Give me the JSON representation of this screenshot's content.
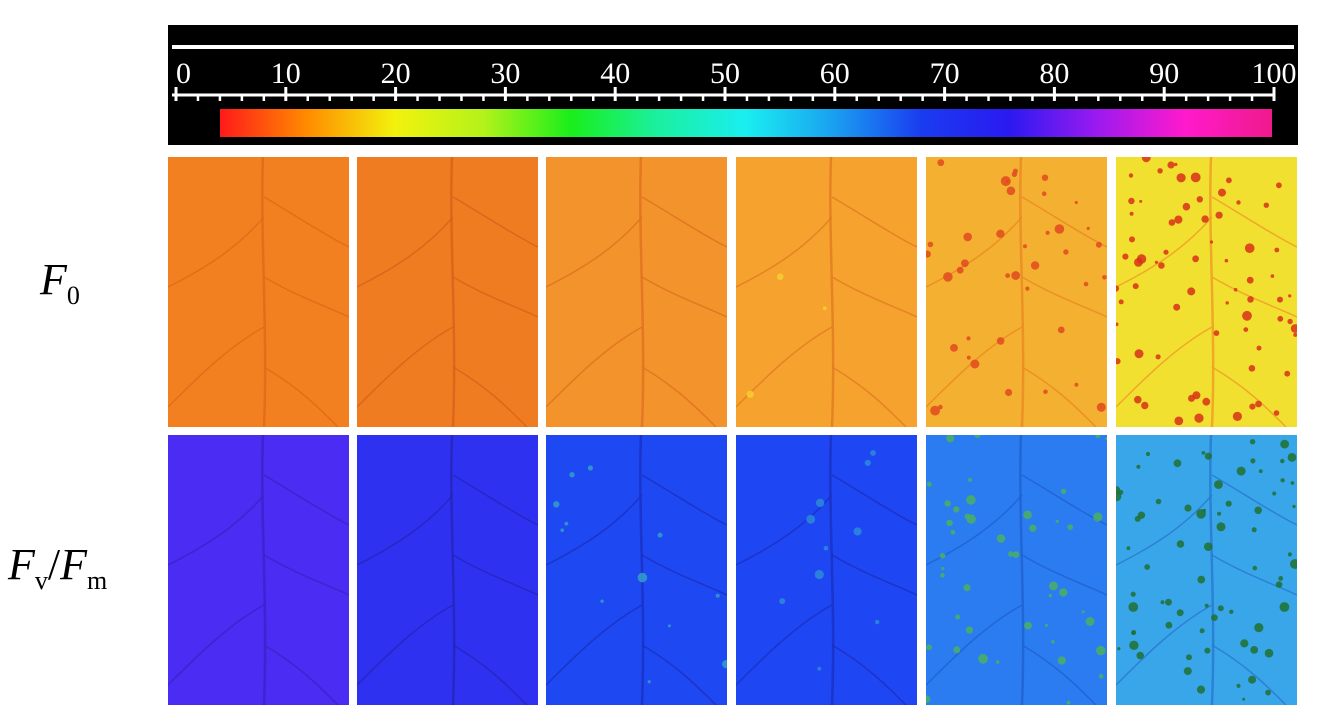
{
  "colorbar": {
    "ticks": [
      "0",
      "10",
      "20",
      "30",
      "40",
      "50",
      "60",
      "70",
      "80",
      "90",
      "100"
    ],
    "gradient_colors": [
      "#ff1a1a",
      "#ff8c00",
      "#f2f20d",
      "#b4f21a",
      "#1aee1a",
      "#1af0a0",
      "#1aeef0",
      "#1aa0f0",
      "#1a3cf0",
      "#2a1af0",
      "#9a1af0",
      "#ff1acc",
      "#f01a8c"
    ]
  },
  "row_labels": {
    "f0": {
      "main": "F",
      "sub": "0"
    },
    "fvfm": {
      "main1": "F",
      "sub1": "v",
      "slash": "/",
      "main2": "F",
      "sub2": "m"
    }
  },
  "panels": {
    "f0": [
      {
        "base": "#f28020",
        "vein": "#e06818",
        "spot": "#f5a030",
        "spots": 0
      },
      {
        "base": "#f07c22",
        "vein": "#d8601a",
        "spot": "#f59a30",
        "spots": 0
      },
      {
        "base": "#f3932c",
        "vein": "#e07020",
        "spot": "#f6b040",
        "spots": 0
      },
      {
        "base": "#f5a22e",
        "vein": "#e37a22",
        "spot": "#f4d030",
        "spots": 3
      },
      {
        "base": "#f4b030",
        "vein": "#e88a24",
        "spot": "#e04a20",
        "spots": 40
      },
      {
        "base": "#f2e030",
        "vein": "#ef9a28",
        "spot": "#d83018",
        "spots": 70
      }
    ],
    "fvfm": [
      {
        "base": "#4a2cf2",
        "vein": "#3a22c8",
        "spot": "#5a3af4",
        "spots": 0
      },
      {
        "base": "#2e32f0",
        "vein": "#2424b8",
        "spot": "#3a40f4",
        "spots": 0
      },
      {
        "base": "#1e48f2",
        "vein": "#1a30c0",
        "spot": "#30a0c8",
        "spots": 12
      },
      {
        "base": "#1e46f2",
        "vein": "#1a30c0",
        "spot": "#2c8cd8",
        "spots": 10
      },
      {
        "base": "#2a7cf0",
        "vein": "#2060d0",
        "spot": "#4ab060",
        "spots": 45
      },
      {
        "base": "#3aa6ea",
        "vein": "#2878d0",
        "spot": "#207030",
        "spots": 70
      }
    ]
  }
}
